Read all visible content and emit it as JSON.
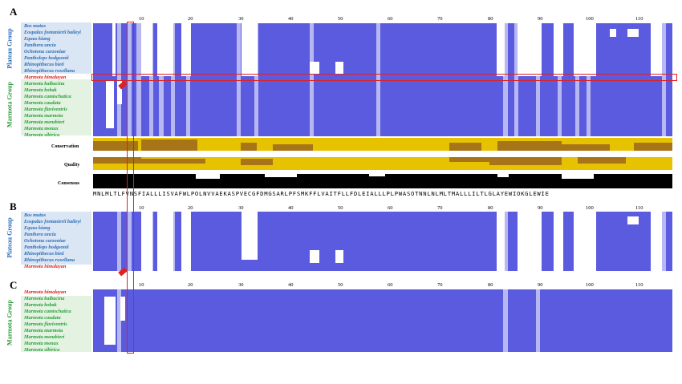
{
  "panels": {
    "A": {
      "letter": "A",
      "ruler_ticks": [
        "10",
        "20",
        "30",
        "40",
        "50",
        "60",
        "70",
        "80",
        "90",
        "100",
        "110"
      ],
      "plateau_group_label": "Plateau Group",
      "marmota_group_label": "Marmota Group",
      "plateau_species": [
        "Bos mutus",
        "Eospalax fontanierii baileyi",
        "Equus kiang",
        "Panthera uncia",
        "Ochotona curzoniae",
        "Pantholops hodgsonii",
        "Rhinopithecus bieti",
        "Rhinopithecus roxellana"
      ],
      "target_species": "Marmota himalayan",
      "marmota_species": [
        "Marmota baibacina",
        "Marmota bobak",
        "Marmota camtschatica",
        "Marmota caudata",
        "Marmota flaviventris",
        "Marmota marmota",
        "Marmota menzbieri",
        "Marmota monax",
        "Marmota sibirica"
      ],
      "tracks": {
        "conservation": "Conservation",
        "quality": "Quality",
        "consensus": "Consensus"
      },
      "consensus_seq": "MNLMLTLFVNSFIALLLISVAFWLPOLNVVAEKASPVECGFDMGSARLPFSMKFFLVAITFLLFDLEIALLLPLPWASOTNNLNLMLTMALLLILTLGLAYEWIOKGLEWIE"
    },
    "B": {
      "letter": "B",
      "ruler_ticks": [
        "10",
        "20",
        "30",
        "40",
        "50",
        "60",
        "70",
        "80",
        "90",
        "100",
        "110"
      ],
      "plateau_group_label": "Plateau Group",
      "plateau_species": [
        "Bos mutus",
        "Eospalax fontanierii baileyi",
        "Equus kiang",
        "Panthera uncia",
        "Ochotona curzoniae",
        "Pantholops hodgsonii",
        "Rhinopithecus bieti",
        "Rhinopithecus roxellana"
      ],
      "target_species": "Marmota himalayan"
    },
    "C": {
      "letter": "C",
      "ruler_ticks": [
        "10",
        "20",
        "30",
        "40",
        "50",
        "60",
        "70",
        "80",
        "90",
        "100",
        "110"
      ],
      "marmota_group_label": "Marmota Group",
      "target_species": "Marmota himalayan",
      "marmota_species": [
        "Marmota baibacina",
        "Marmota bobak",
        "Marmota camtschatica",
        "Marmota caudata",
        "Marmota flaviventris",
        "Marmota marmota",
        "Marmota menzbieri",
        "Marmota monax",
        "Marmota sibirica"
      ]
    }
  },
  "colors": {
    "alignment_blue": "#5b5be0",
    "light_blue": "#b7b7f2",
    "plateau_blue": "#2a6cb8",
    "marmota_green": "#27a03a",
    "highlight_red": "#e02020",
    "conservation_yellow": "#e6c200",
    "quality_brown": "#a87418",
    "consensus_black": "#000000"
  }
}
